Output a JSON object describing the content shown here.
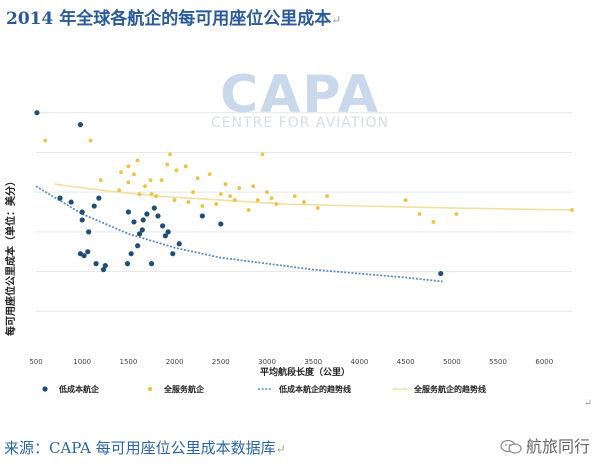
{
  "title": "2014 年全球各航企的每可用座位公里成本",
  "title_mark": "↵",
  "watermark": {
    "main": "CAPA",
    "sub": "CENTRE FOR AVIATION"
  },
  "source": "来源：CAPA 每可用座位公里成本数据库",
  "source_mark": "↵",
  "end_mark": "↵",
  "wechat_account": "航旅同行",
  "colors": {
    "lcc": "#1f4e79",
    "fsc": "#f0c040",
    "lcc_trend": "#5b8ec4",
    "fsc_trend": "#f2e0a0",
    "grid": "#e6e6e6",
    "title": "#2a5a9a"
  },
  "chart_data": {
    "type": "scatter",
    "title": "",
    "xlabel": "平均航段长度（公里）",
    "ylabel": "每可用座位公里成本（单位：美分）",
    "xlim": [
      500,
      6300
    ],
    "ylim": [
      0,
      14
    ],
    "x_ticks": [
      500,
      1000,
      1500,
      2000,
      2500,
      3000,
      3500,
      4000,
      4500,
      5000,
      5500,
      6000
    ],
    "y_gridlines": [
      2,
      4,
      6,
      8,
      10,
      12
    ],
    "y_tick_labels_shown": false,
    "grid": true,
    "legend_position": "bottom",
    "series": [
      {
        "name": "低成本航企",
        "kind": "points",
        "color": "#1f4e79",
        "points": [
          [
            510,
            12.0
          ],
          [
            980,
            11.4
          ],
          [
            760,
            7.7
          ],
          [
            880,
            7.5
          ],
          [
            1000,
            7.0
          ],
          [
            1000,
            6.6
          ],
          [
            1070,
            6.0
          ],
          [
            1130,
            7.3
          ],
          [
            1180,
            7.7
          ],
          [
            1060,
            5.0
          ],
          [
            980,
            4.9
          ],
          [
            1020,
            4.8
          ],
          [
            1150,
            4.4
          ],
          [
            1230,
            4.1
          ],
          [
            1250,
            4.3
          ],
          [
            1490,
            4.4
          ],
          [
            1530,
            4.9
          ],
          [
            1600,
            5.3
          ],
          [
            1620,
            5.9
          ],
          [
            1650,
            6.1
          ],
          [
            1660,
            6.6
          ],
          [
            1700,
            6.9
          ],
          [
            1560,
            6.5
          ],
          [
            1500,
            7.0
          ],
          [
            1780,
            7.2
          ],
          [
            1820,
            6.8
          ],
          [
            1870,
            6.3
          ],
          [
            1900,
            5.8
          ],
          [
            1930,
            6.0
          ],
          [
            1750,
            4.4
          ],
          [
            1980,
            4.9
          ],
          [
            2050,
            5.4
          ],
          [
            2300,
            6.8
          ],
          [
            2500,
            6.4
          ],
          [
            4880,
            3.9
          ]
        ]
      },
      {
        "name": "全服务航企",
        "kind": "points",
        "color": "#f0c040",
        "points": [
          [
            600,
            10.6
          ],
          [
            1090,
            10.6
          ],
          [
            1200,
            8.6
          ],
          [
            1400,
            8.1
          ],
          [
            1500,
            8.5
          ],
          [
            1420,
            9.0
          ],
          [
            1500,
            9.3
          ],
          [
            1560,
            8.9
          ],
          [
            1600,
            9.6
          ],
          [
            1620,
            7.9
          ],
          [
            1680,
            8.3
          ],
          [
            1740,
            8.6
          ],
          [
            1800,
            7.8
          ],
          [
            1860,
            8.6
          ],
          [
            1920,
            9.4
          ],
          [
            1950,
            9.9
          ],
          [
            2020,
            9.1
          ],
          [
            2120,
            9.3
          ],
          [
            2200,
            8.0
          ],
          [
            2250,
            8.7
          ],
          [
            2300,
            7.3
          ],
          [
            2380,
            8.9
          ],
          [
            2500,
            7.9
          ],
          [
            2550,
            8.4
          ],
          [
            2600,
            7.8
          ],
          [
            2650,
            7.6
          ],
          [
            2700,
            8.2
          ],
          [
            2800,
            7.1
          ],
          [
            2850,
            8.3
          ],
          [
            2900,
            7.6
          ],
          [
            2950,
            9.9
          ],
          [
            3000,
            8.0
          ],
          [
            3050,
            7.7
          ],
          [
            3100,
            7.4
          ],
          [
            3300,
            7.8
          ],
          [
            3400,
            7.5
          ],
          [
            3550,
            7.2
          ],
          [
            3650,
            7.8
          ],
          [
            4500,
            7.6
          ],
          [
            4650,
            6.9
          ],
          [
            4800,
            6.5
          ],
          [
            5050,
            6.9
          ],
          [
            6300,
            7.1
          ],
          [
            1750,
            7.9
          ],
          [
            2000,
            7.6
          ],
          [
            2150,
            7.5
          ],
          [
            2450,
            7.4
          ]
        ]
      },
      {
        "name": "低成本航企的趋势线",
        "kind": "trend",
        "color": "#5b8ec4",
        "points": [
          [
            500,
            8.3
          ],
          [
            1000,
            6.9
          ],
          [
            1500,
            5.9
          ],
          [
            2000,
            5.2
          ],
          [
            2500,
            4.7
          ],
          [
            3000,
            4.4
          ],
          [
            3500,
            4.1
          ],
          [
            4000,
            3.9
          ],
          [
            4500,
            3.7
          ],
          [
            4900,
            3.5
          ]
        ]
      },
      {
        "name": "全服务航企的趋势线",
        "kind": "trend",
        "color": "#f2e0a0",
        "points": [
          [
            700,
            8.4
          ],
          [
            1200,
            8.1
          ],
          [
            1800,
            7.8
          ],
          [
            2500,
            7.6
          ],
          [
            3200,
            7.4
          ],
          [
            4000,
            7.3
          ],
          [
            5000,
            7.2
          ],
          [
            6300,
            7.1
          ]
        ]
      }
    ]
  }
}
